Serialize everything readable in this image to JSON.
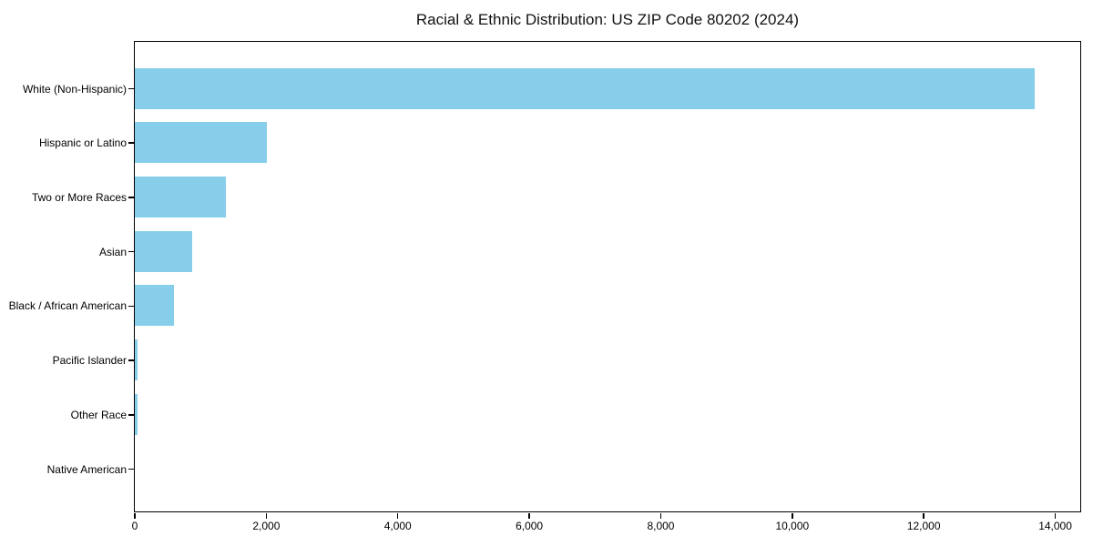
{
  "chart_data": {
    "type": "bar",
    "orientation": "horizontal",
    "title": "Racial & Ethnic Distribution: US ZIP Code 80202 (2024)",
    "categories": [
      "White (Non-Hispanic)",
      "Hispanic or Latino",
      "Two or More Races",
      "Asian",
      "Black / African American",
      "Pacific Islander",
      "Other Race",
      "Native American"
    ],
    "values": [
      13690,
      2015,
      1395,
      875,
      605,
      50,
      45,
      0
    ],
    "xlabel": "",
    "ylabel": "",
    "xlim": [
      0,
      14380
    ],
    "x_ticks": [
      0,
      2000,
      4000,
      6000,
      8000,
      10000,
      12000,
      14000
    ],
    "x_tick_labels": [
      "0",
      "2,000",
      "4,000",
      "6,000",
      "8,000",
      "10,000",
      "12,000",
      "14,000"
    ],
    "bar_color": "#87ceeb",
    "axis_color": "#000000",
    "grid": false,
    "legend_position": "none"
  }
}
